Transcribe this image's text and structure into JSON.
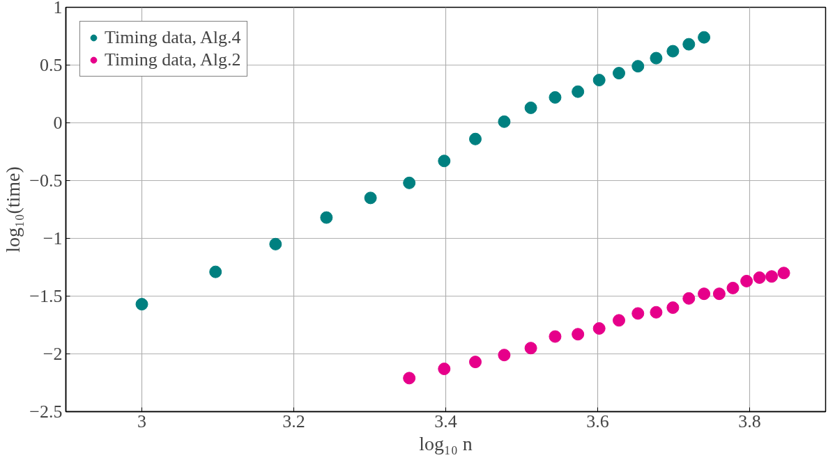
{
  "chart_data": {
    "type": "scatter",
    "xlabel": "log₁₀ n",
    "ylabel": "log₁₀(time)",
    "xlim": [
      2.9,
      3.9
    ],
    "ylim": [
      -2.5,
      1
    ],
    "xticks": [
      3,
      3.2,
      3.4,
      3.6,
      3.8
    ],
    "yticks": [
      {
        "value": -2.5,
        "label": "−2.5"
      },
      {
        "value": -2,
        "label": "−2"
      },
      {
        "value": -1.5,
        "label": "−1.5"
      },
      {
        "value": -1,
        "label": "−1"
      },
      {
        "value": -0.5,
        "label": "−0.5"
      },
      0,
      0.5,
      1
    ],
    "grid": true,
    "legend": "top left",
    "marker": "circle",
    "series": [
      {
        "name": "Timing data, Alg.4",
        "color": "#008080",
        "x": [
          3.0,
          3.097,
          3.176,
          3.243,
          3.301,
          3.352,
          3.398,
          3.439,
          3.477,
          3.512,
          3.544,
          3.574,
          3.602,
          3.628,
          3.653,
          3.677,
          3.699,
          3.72,
          3.74
        ],
        "values": [
          -1.57,
          -1.29,
          -1.05,
          -0.82,
          -0.65,
          -0.52,
          -0.33,
          -0.14,
          0.01,
          0.13,
          0.22,
          0.27,
          0.37,
          0.43,
          0.49,
          0.56,
          0.62,
          0.68,
          0.74
        ]
      },
      {
        "name": "Timing data, Alg.2",
        "color": "#e6008a",
        "x": [
          3.352,
          3.398,
          3.439,
          3.477,
          3.512,
          3.544,
          3.574,
          3.602,
          3.628,
          3.653,
          3.677,
          3.699,
          3.72,
          3.74,
          3.76,
          3.778,
          3.796,
          3.813,
          3.829,
          3.845
        ],
        "values": [
          -2.21,
          -2.13,
          -2.07,
          -2.01,
          -1.95,
          -1.85,
          -1.83,
          -1.78,
          -1.71,
          -1.65,
          -1.64,
          -1.6,
          -1.52,
          -1.48,
          -1.48,
          -1.43,
          -1.37,
          -1.34,
          -1.33,
          -1.3
        ]
      }
    ]
  }
}
